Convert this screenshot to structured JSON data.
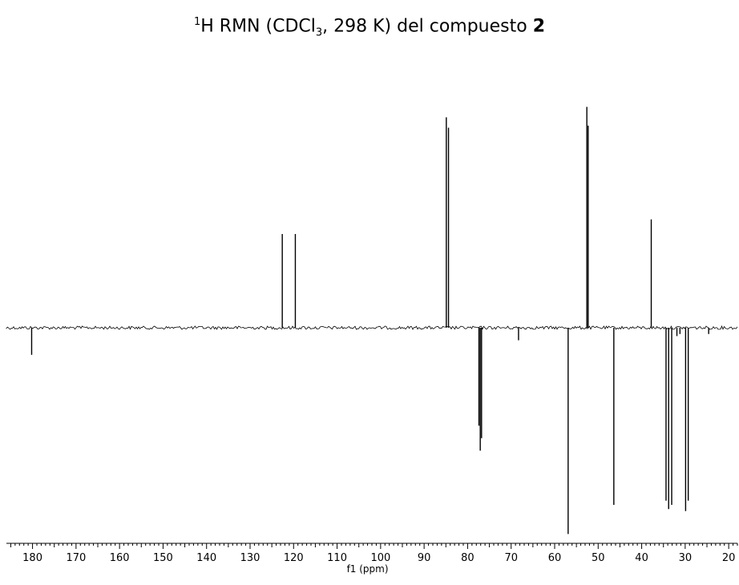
{
  "title": {
    "sup": "1",
    "part1": "H RMN (CDCl",
    "sub": "3",
    "part2": ", 298 K) del compuesto ",
    "bold": "2"
  },
  "chart_data": {
    "type": "line",
    "title": "1H RMN (CDCl3, 298 K) del compuesto 2",
    "xlabel": "f1 (ppm)",
    "ylabel": "",
    "xlim": [
      186,
      18
    ],
    "ylim": [
      -1.0,
      1.1
    ],
    "x_reversed": true,
    "grid": false,
    "xticks": [
      180,
      170,
      160,
      150,
      140,
      130,
      120,
      110,
      100,
      90,
      80,
      70,
      60,
      50,
      40,
      30,
      20
    ],
    "peaks": [
      {
        "ppm": 180.2,
        "intensity": -0.13
      },
      {
        "ppm": 122.6,
        "intensity": 0.45
      },
      {
        "ppm": 119.6,
        "intensity": 0.45
      },
      {
        "ppm": 84.9,
        "intensity": 1.01
      },
      {
        "ppm": 84.4,
        "intensity": 0.96
      },
      {
        "ppm": 77.4,
        "intensity": -0.47
      },
      {
        "ppm": 77.1,
        "intensity": -0.59
      },
      {
        "ppm": 76.8,
        "intensity": -0.53
      },
      {
        "ppm": 68.3,
        "intensity": -0.06
      },
      {
        "ppm": 56.9,
        "intensity": -0.99
      },
      {
        "ppm": 52.6,
        "intensity": 1.06
      },
      {
        "ppm": 52.3,
        "intensity": 0.97
      },
      {
        "ppm": 46.4,
        "intensity": -0.85
      },
      {
        "ppm": 37.8,
        "intensity": 0.52
      },
      {
        "ppm": 34.4,
        "intensity": -0.83
      },
      {
        "ppm": 33.8,
        "intensity": -0.87
      },
      {
        "ppm": 33.1,
        "intensity": -0.85
      },
      {
        "ppm": 31.9,
        "intensity": -0.04
      },
      {
        "ppm": 31.2,
        "intensity": -0.03
      },
      {
        "ppm": 29.9,
        "intensity": -0.88
      },
      {
        "ppm": 29.3,
        "intensity": -0.83
      },
      {
        "ppm": 24.6,
        "intensity": -0.03
      }
    ]
  }
}
